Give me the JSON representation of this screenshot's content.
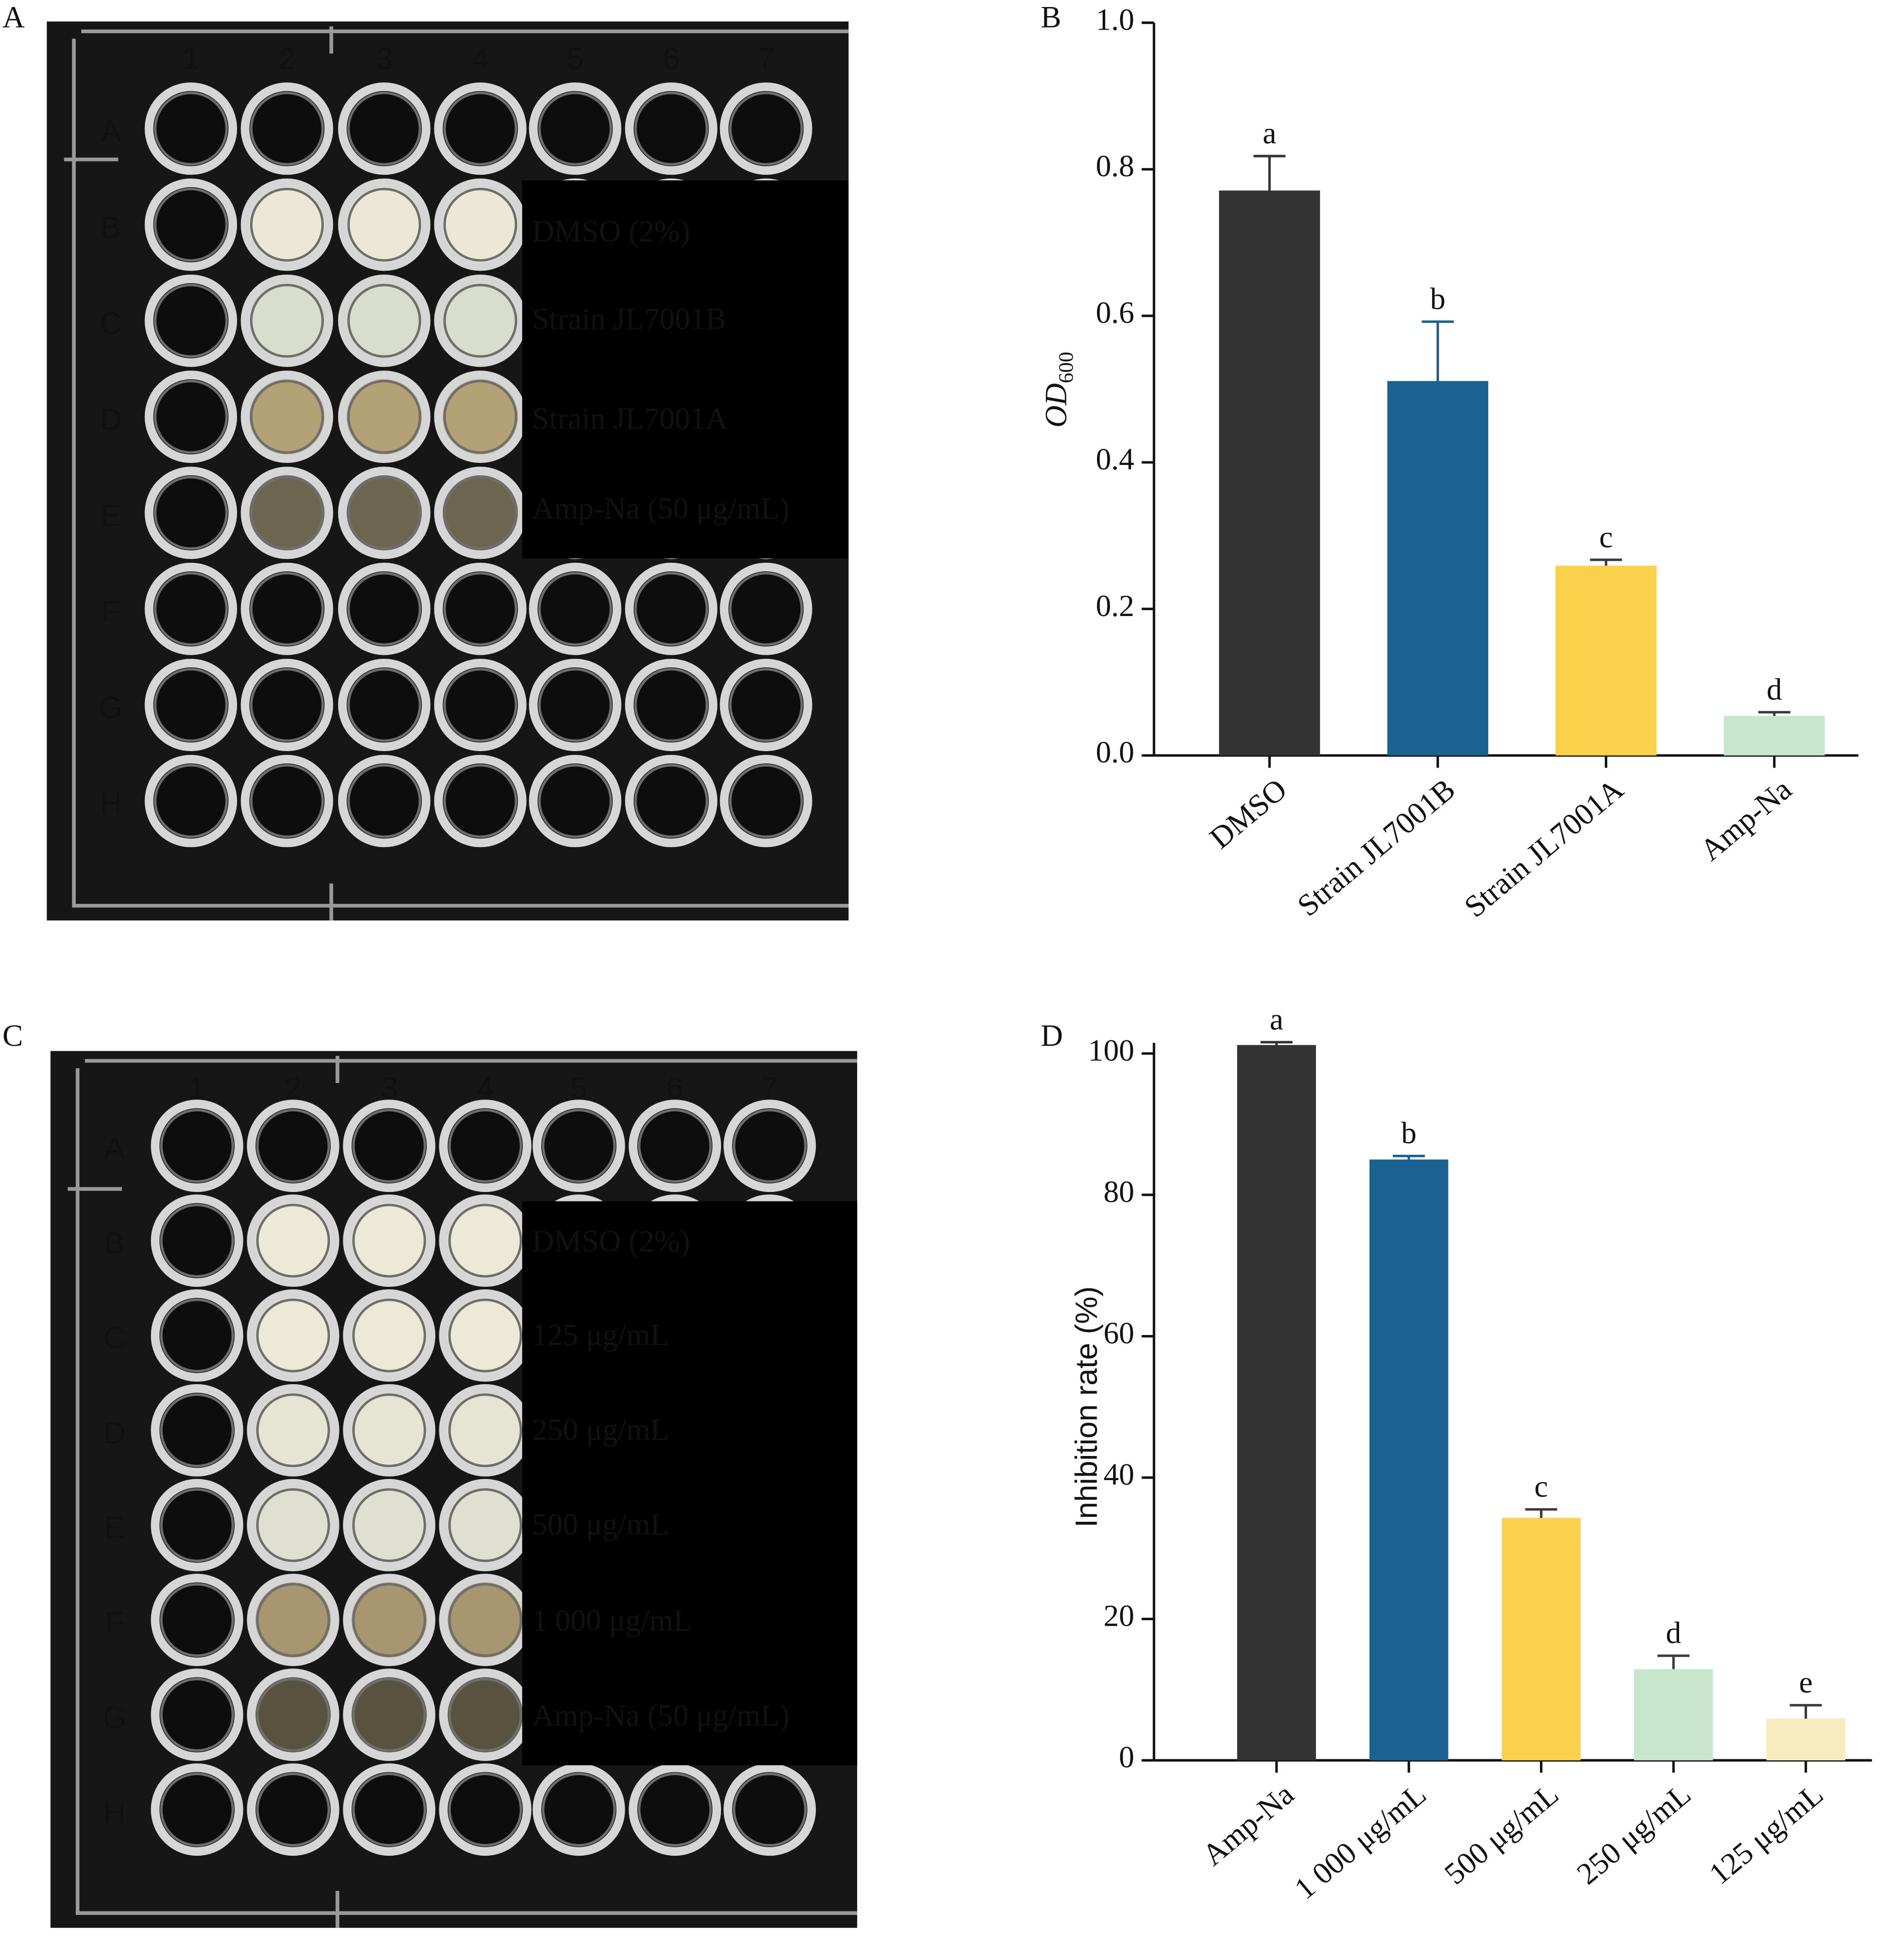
{
  "panel_labels": [
    "A",
    "B",
    "C",
    "D"
  ],
  "plate_a": {
    "columns": [
      "1",
      "2",
      "3",
      "4",
      "5",
      "6",
      "7"
    ],
    "rows": [
      "A",
      "B",
      "C",
      "D",
      "E",
      "F",
      "G",
      "H"
    ],
    "labels": [
      "DMSO (2%)",
      "Strain JL7001B",
      "Strain JL7001A",
      "Amp-Na (50 μg/mL)"
    ]
  },
  "plate_c": {
    "columns": [
      "1",
      "2",
      "3",
      "4",
      "5",
      "6",
      "7"
    ],
    "rows": [
      "A",
      "B",
      "C",
      "D",
      "E",
      "F",
      "G",
      "H"
    ],
    "labels": [
      "DMSO (2%)",
      "125 μg/mL",
      "250 μg/mL",
      "500 μg/mL",
      "1 000 μg/mL",
      "Amp-Na (50 μg/mL)"
    ]
  },
  "chart_data": [
    {
      "type": "bar",
      "y_label": "OD",
      "y_label_subscript": "600",
      "categories": [
        "DMSO",
        "Strain JL7001B",
        "Strain JL7001A",
        "Amp-Na"
      ],
      "values": [
        0.771,
        0.511,
        0.259,
        0.054
      ],
      "errors": [
        0.047,
        0.081,
        0.008,
        0.005
      ],
      "annotations": [
        "a",
        "b",
        "c",
        "d"
      ],
      "colors": [
        "#333333",
        "#1b6293",
        "#fbd14b",
        "#c8e6cc"
      ],
      "ylim": [
        0,
        1
      ],
      "yticks": [
        {
          "value": 0,
          "label": "0.0"
        },
        0.2,
        0.4,
        0.6,
        0.8,
        {
          "value": 1,
          "label": "1.0"
        }
      ]
    },
    {
      "type": "bar",
      "y_label": "Inhibition rate (%)",
      "categories": [
        "Amp-Na",
        "1 000 μg/mL",
        "500 μg/mL",
        "250 μg/mL",
        "125 μg/mL"
      ],
      "values": [
        101.2,
        85.0,
        34.3,
        12.9,
        5.9
      ],
      "errors": [
        0.4,
        0.5,
        1.2,
        1.9,
        1.9
      ],
      "annotations": [
        "a",
        "b",
        "c",
        "d",
        "e"
      ],
      "colors": [
        "#333333",
        "#1b6293",
        "#fbd14b",
        "#c8e6cc",
        "#f8ebbd"
      ],
      "ylim": [
        0,
        101.5
      ],
      "yticks": [
        0,
        20,
        40,
        60,
        80,
        100
      ]
    }
  ]
}
